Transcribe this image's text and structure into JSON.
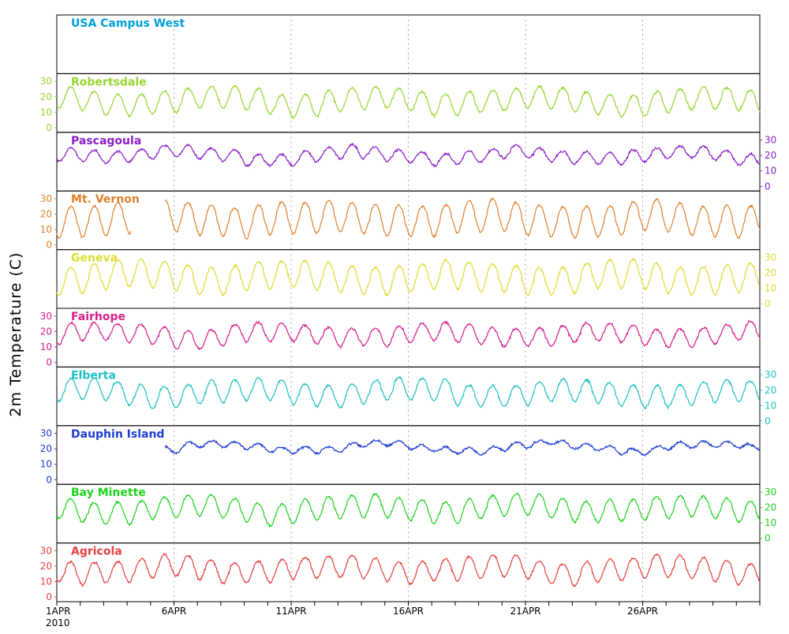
{
  "chart_data": {
    "type": "line",
    "ylabel": "2m Temperature (C)",
    "x_tick_labels": [
      "1APR",
      "6APR",
      "11APR",
      "16APR",
      "21APR",
      "26APR"
    ],
    "x_year_label": "2010",
    "x_range_days": [
      1,
      31
    ],
    "ylim": [
      -3,
      35
    ],
    "y_ticks": [
      0,
      10,
      20,
      30
    ],
    "grid": true,
    "series": [
      {
        "name": "USA Campus West",
        "color": "#00a0dc",
        "axis_side": "none",
        "has_data": false,
        "mean": null,
        "amplitude": null,
        "gap": null
      },
      {
        "name": "Robertsdale",
        "color": "#99d633",
        "axis_side": "left",
        "has_data": true,
        "mean": 17,
        "amplitude": 7,
        "gap": null
      },
      {
        "name": "Pascagoula",
        "color": "#8c1fc8",
        "axis_side": "right",
        "has_data": true,
        "mean": 20,
        "amplitude": 4,
        "gap": null
      },
      {
        "name": "Mt. Vernon",
        "color": "#e0822d",
        "axis_side": "left",
        "has_data": true,
        "mean": 17,
        "amplitude": 10,
        "gap": [
          4.2,
          5.6
        ]
      },
      {
        "name": "Geneva",
        "color": "#dcdc2d",
        "axis_side": "right",
        "has_data": true,
        "mean": 17,
        "amplitude": 9,
        "gap": null
      },
      {
        "name": "Fairhope",
        "color": "#d61f8a",
        "axis_side": "left",
        "has_data": true,
        "mean": 18,
        "amplitude": 6,
        "gap": null
      },
      {
        "name": "Elberta",
        "color": "#1fc0c0",
        "axis_side": "right",
        "has_data": true,
        "mean": 18,
        "amplitude": 7,
        "gap": null
      },
      {
        "name": "Dauphin Island",
        "color": "#1f3cd2",
        "axis_side": "left",
        "has_data": true,
        "mean": 21,
        "amplitude": 2,
        "gap": [
          1,
          5.6
        ]
      },
      {
        "name": "Bay Minette",
        "color": "#1fd21f",
        "axis_side": "right",
        "has_data": true,
        "mean": 19,
        "amplitude": 7,
        "gap": null
      },
      {
        "name": "Agricola",
        "color": "#e64040",
        "axis_side": "left",
        "has_data": true,
        "mean": 18,
        "amplitude": 7,
        "gap": null
      }
    ]
  }
}
